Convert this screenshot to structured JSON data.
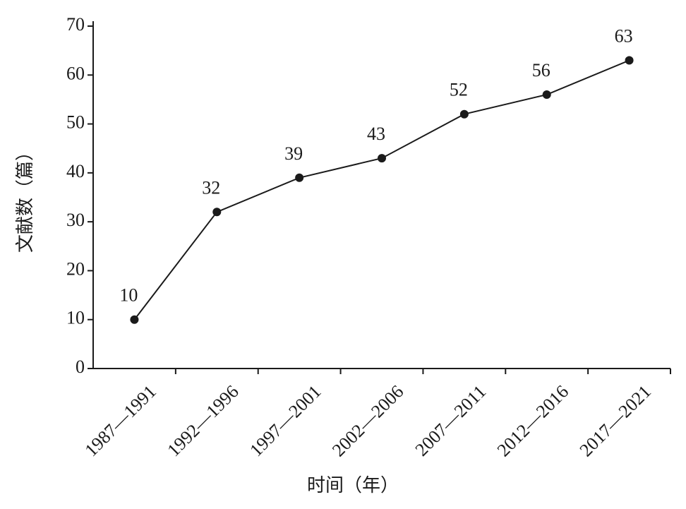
{
  "chart_data": {
    "type": "line",
    "x_label": "时间（年）",
    "y_label": "文献数（篇）",
    "categories": [
      "1987—1991",
      "1992—1996",
      "1997—2001",
      "2002—2006",
      "2007—2011",
      "2012—2016",
      "2017—2021"
    ],
    "values": [
      10,
      32,
      39,
      43,
      52,
      56,
      63
    ],
    "color": "#1a1a1a",
    "ylim": [
      0,
      70
    ],
    "yticks": [
      0,
      10,
      20,
      30,
      40,
      50,
      60,
      70
    ],
    "data_labels": true
  }
}
